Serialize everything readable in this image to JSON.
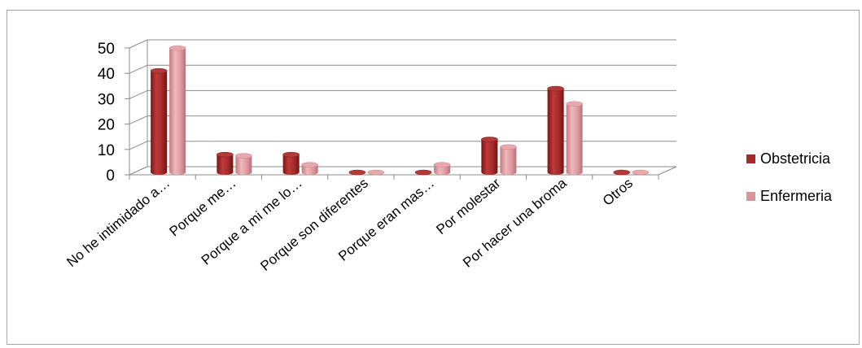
{
  "chart_data": {
    "type": "bar",
    "style": "3d-clustered-cylinder",
    "categories": [
      "No he intimidado a…",
      "Porque me…",
      "Porque a mi me lo…",
      "Porque son diferentes",
      "Porque eran mas…",
      "Por molestar",
      "Por hacer una broma",
      "Otros"
    ],
    "series": [
      {
        "name": "Obstetricia",
        "values": [
          40,
          7,
          7,
          0,
          0,
          13,
          33,
          0
        ],
        "color": "#a52a2a"
      },
      {
        "name": "Enfermeria",
        "values": [
          49,
          6.5,
          3,
          0,
          3,
          10,
          27,
          0
        ],
        "color": "#d9959a"
      }
    ],
    "yticks": [
      0,
      10,
      20,
      30,
      40,
      50
    ],
    "ylim": [
      0,
      50
    ],
    "grid": true,
    "legend_position": "right"
  }
}
